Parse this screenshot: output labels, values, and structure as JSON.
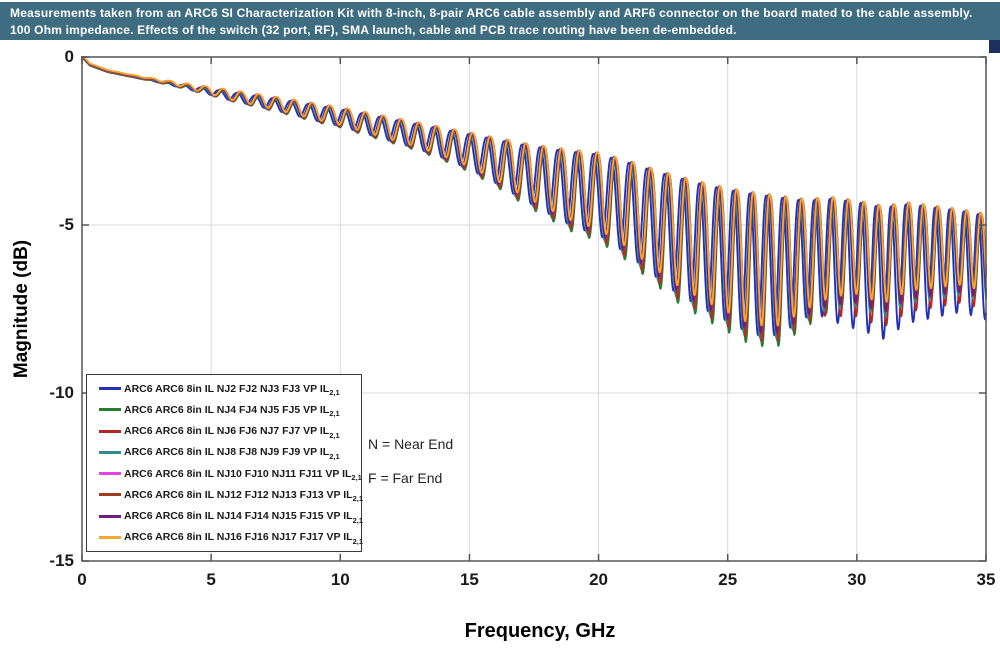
{
  "banner": {
    "line1": "Measurements taken from an ARC6 SI Characterization Kit with 8-inch, 8-pair ARC6 cable assembly and ARF6 connector on the board mated to the cable assembly.",
    "line2": "100 Ohm impedance. Effects of the switch (32 port, RF), SMA launch, cable and PCB trace routing have been de-embedded.",
    "bg": "#3e6c80",
    "tab_color": "#1c2f5e"
  },
  "annotations": {
    "near": "N = Near End",
    "far": "F = Far End"
  },
  "chart_data": {
    "type": "line",
    "xlabel": "Frequency, GHz",
    "ylabel": "Magnitude (dB)",
    "xlim": [
      0,
      35
    ],
    "ylim": [
      -15,
      0
    ],
    "xticks": [
      0,
      5,
      10,
      15,
      20,
      25,
      30,
      35
    ],
    "yticks": [
      0,
      -5,
      -10,
      -15
    ],
    "grid": true,
    "legend_position": "lower-left",
    "grid_color": "#d9d9d9",
    "axis_color": "#555555",
    "legend_subscript": "2,1",
    "envelope": {
      "description": "Upper/lower ripple envelope of the eight insertion-loss traces, dB vs GHz",
      "freq_ghz": [
        0,
        0.3,
        1,
        2,
        3,
        4,
        5,
        6,
        7,
        8,
        9,
        10,
        11,
        12,
        13,
        14,
        15,
        16,
        17,
        18,
        19,
        20,
        21,
        22,
        23,
        24,
        25,
        26,
        27,
        28,
        29,
        30,
        31,
        32,
        33,
        34,
        35
      ],
      "upper_db": [
        0,
        -0.25,
        -0.45,
        -0.6,
        -0.72,
        -0.84,
        -0.95,
        -1.07,
        -1.18,
        -1.3,
        -1.43,
        -1.55,
        -1.7,
        -1.85,
        -2.0,
        -2.15,
        -2.3,
        -2.45,
        -2.6,
        -2.72,
        -2.82,
        -2.9,
        -3.1,
        -3.35,
        -3.58,
        -3.78,
        -3.95,
        -4.08,
        -4.18,
        -4.28,
        -4.22,
        -4.32,
        -4.48,
        -4.38,
        -4.48,
        -4.58,
        -4.72
      ],
      "lower_db": [
        0,
        -0.3,
        -0.52,
        -0.7,
        -0.85,
        -1.0,
        -1.15,
        -1.33,
        -1.5,
        -1.68,
        -1.88,
        -2.05,
        -2.28,
        -2.5,
        -2.72,
        -3.0,
        -3.32,
        -3.72,
        -4.18,
        -4.6,
        -5.0,
        -5.25,
        -5.75,
        -6.35,
        -6.95,
        -7.4,
        -7.8,
        -8.2,
        -8.2,
        -7.7,
        -7.3,
        -7.2,
        -7.5,
        -7.1,
        -7.0,
        -6.9,
        -7.1
      ]
    },
    "oscillation": {
      "cycles_per_ghz": 1.45,
      "chirp": 0.015,
      "chirp_start_ghz": 22,
      "dip_sharpness": 2.2,
      "ripple_ramp_start_ghz": 1,
      "ripple_ramp_span_ghz": 5,
      "sample_step_ghz": 0.02
    },
    "series": [
      {
        "label": "ARC6 ARC6 8in IL NJ2 FJ2 NJ3 FJ3 VP IL",
        "color": "#2231b8",
        "phase": 0.9,
        "dip_mid": 1.02,
        "dip_high": 1.3,
        "upper_offset": 0.0
      },
      {
        "label": "ARC6 ARC6 8in IL NJ4 FJ4 NJ5 FJ5 VP IL",
        "color": "#2b7c33",
        "phase": 0.1,
        "dip_mid": 1.1,
        "dip_high": 1.05,
        "upper_offset": 0.0
      },
      {
        "label": "ARC6 ARC6 8in IL NJ6 FJ6 NJ7 FJ7 VP IL",
        "color": "#b42524",
        "phase": 0.3,
        "dip_mid": 1.06,
        "dip_high": 1.18,
        "upper_offset": 0.01
      },
      {
        "label": "ARC6 ARC6 8in IL NJ8 FJ8 NJ9 FJ9 VP IL",
        "color": "#2f8b8c",
        "phase": 0.5,
        "dip_mid": 1.04,
        "dip_high": 1.08,
        "upper_offset": 0.02
      },
      {
        "label": "ARC6 ARC6 8in IL NJ10 FJ10 NJ11 FJ11 VP IL",
        "color": "#e644da",
        "phase": 0.2,
        "dip_mid": 0.99,
        "dip_high": 1.0,
        "upper_offset": 0.05
      },
      {
        "label": "ARC6 ARC6 8in IL NJ12 FJ12 NJ13 FJ13 VP IL",
        "color": "#a23a20",
        "phase": 0.15,
        "dip_mid": 1.05,
        "dip_high": 1.02,
        "upper_offset": 0.03
      },
      {
        "label": "ARC6 ARC6 8in IL NJ14 FJ14 NJ15 FJ15 VP IL",
        "color": "#6c1f7e",
        "phase": 0.4,
        "dip_mid": 1.0,
        "dip_high": 1.04,
        "upper_offset": 0.05
      },
      {
        "label": "ARC6 ARC6 8in IL NJ16 FJ16 NJ17 FJ17 VP IL",
        "color": "#f5a733",
        "phase": 0.22,
        "dip_mid": 0.95,
        "dip_high": 0.95,
        "upper_offset": 0.06
      }
    ]
  }
}
